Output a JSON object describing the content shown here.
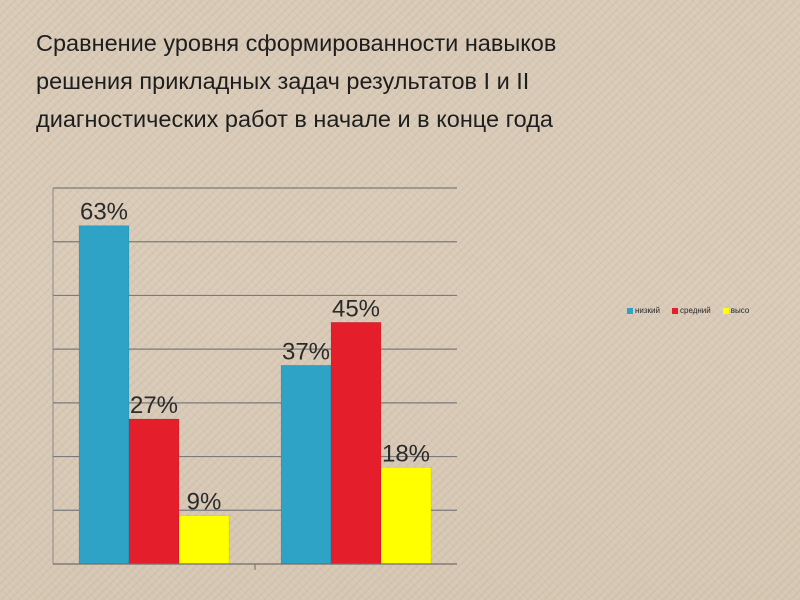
{
  "slide": {
    "title_lines": [
      "Сравнение уровня сформированности навыков",
      "решения прикладных задач результатов I и II",
      "диагностических работ в начале и в конце года"
    ]
  },
  "chart_data": {
    "type": "bar",
    "title": "",
    "xlabel": "",
    "ylabel": "",
    "ylim": [
      0,
      70
    ],
    "grid": true,
    "legend": "right",
    "categories": [
      "",
      ""
    ],
    "series": [
      {
        "name": "низкий",
        "color": "#2ea3c6",
        "values": [
          63,
          37
        ],
        "labels": [
          "63%",
          "37%"
        ]
      },
      {
        "name": "средний",
        "color": "#e41f2b",
        "values": [
          27,
          45
        ],
        "labels": [
          "27%",
          "45%"
        ]
      },
      {
        "name": "высо",
        "color": "#ffff00",
        "values": [
          9,
          18
        ],
        "labels": [
          "9%",
          "18%"
        ]
      }
    ]
  }
}
